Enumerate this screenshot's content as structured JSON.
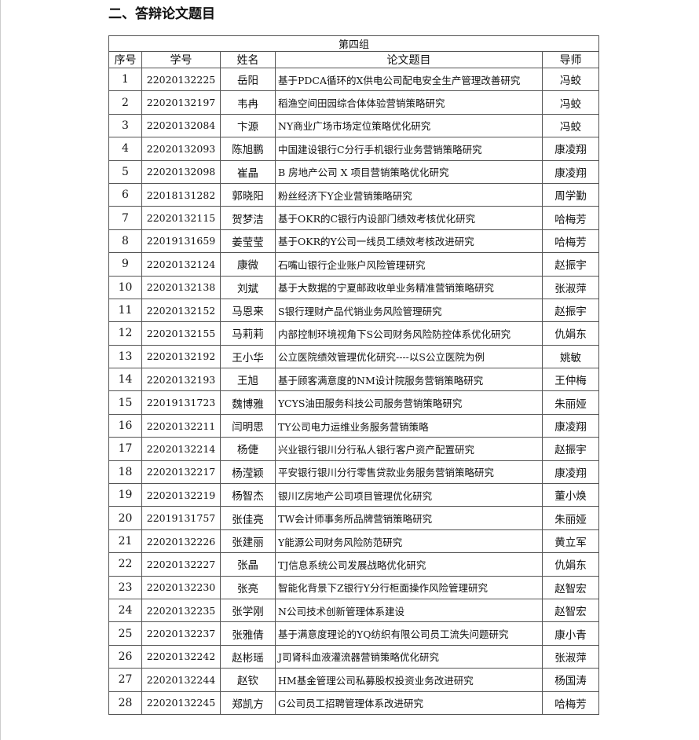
{
  "heading": "二、答辩论文题目",
  "table": {
    "group": "第四组",
    "columns": [
      "序号",
      "学号",
      "姓名",
      "论文题目",
      "导师"
    ],
    "rows": [
      [
        "1",
        "22020132225",
        "岳阳",
        "基于PDCA循环的X供电公司配电安全生产管理改善研究",
        "冯蛟"
      ],
      [
        "2",
        "22020132197",
        "韦冉",
        "稻渔空间田园综合体体验营销策略研究",
        "冯蛟"
      ],
      [
        "3",
        "22020132084",
        "卞源",
        "NY商业广场市场定位策略优化研究",
        "冯蛟"
      ],
      [
        "4",
        "22020132093",
        "陈旭鹏",
        "中国建设银行C分行手机银行业务营销策略研究",
        "康凌翔"
      ],
      [
        "5",
        "22020132098",
        "崔晶",
        "B 房地产公司 X 项目营销策略优化研究",
        "康凌翔"
      ],
      [
        "6",
        "22018131282",
        "郭晓阳",
        "粉丝经济下Y企业营销策略研究",
        "周学勤"
      ],
      [
        "7",
        "22020132115",
        "贺梦洁",
        "基于OKR的C银行内设部门绩效考核优化研究",
        "哈梅芳"
      ],
      [
        "8",
        "22019131659",
        "姜莹莹",
        "基于OKR的Y公司一线员工绩效考核改进研究",
        "哈梅芳"
      ],
      [
        "9",
        "22020132124",
        "康微",
        "石嘴山银行企业账户风险管理研究",
        "赵振宇"
      ],
      [
        "10",
        "22020132138",
        "刘斌",
        "基于大数据的宁夏邮政收单业务精准营销策略研究",
        "张淑萍"
      ],
      [
        "11",
        "22020132152",
        "马恩来",
        "S银行理财产品代销业务风险管理研究",
        "赵振宇"
      ],
      [
        "12",
        "22020132155",
        "马莉莉",
        "内部控制环境视角下S公司财务风险防控体系优化研究",
        "仇娟东"
      ],
      [
        "13",
        "22020132192",
        "王小华",
        "公立医院绩效管理优化研究----以S公立医院为例",
        "姚敏"
      ],
      [
        "14",
        "22020132193",
        "王旭",
        "基于顾客满意度的NM设计院服务营销策略研究",
        "王仲梅"
      ],
      [
        "15",
        "22019131723",
        "魏博雅",
        "YCYS油田服务科技公司服务营销策略研究",
        "朱丽娅"
      ],
      [
        "16",
        "22020132211",
        "闫明思",
        "TY公司电力运维业务服务营销策略",
        "康凌翔"
      ],
      [
        "17",
        "22020132214",
        "杨倢",
        "兴业银行银川分行私人银行客户资产配置研究",
        "赵振宇"
      ],
      [
        "18",
        "22020132217",
        "杨滢颖",
        "平安银行银川分行零售贷款业务服务营销策略研究",
        "康凌翔"
      ],
      [
        "19",
        "22020132219",
        "杨智杰",
        "银川Z房地产公司项目管理优化研究",
        "董小焕"
      ],
      [
        "20",
        "22019131757",
        "张佳亮",
        "TW会计师事务所品牌营销策略研究",
        "朱丽娅"
      ],
      [
        "21",
        "22020132226",
        "张建丽",
        "Y能源公司财务风险防范研究",
        "黄立军"
      ],
      [
        "22",
        "22020132227",
        "张晶",
        "TJ信息系统公司发展战略优化研究",
        "仇娟东"
      ],
      [
        "23",
        "22020132230",
        "张亮",
        "智能化背景下Z银行Y分行柜面操作风险管理研究",
        "赵智宏"
      ],
      [
        "24",
        "22020132235",
        "张学刚",
        "N公司技术创新管理体系建设",
        "赵智宏"
      ],
      [
        "25",
        "22020132237",
        "张雅倩",
        "基于满意度理论的YQ纺织有限公司员工流失问题研究",
        "康小青"
      ],
      [
        "26",
        "22020132242",
        "赵彬瑶",
        "J司肾科血液灌流器营销策略优化研究",
        "张淑萍"
      ],
      [
        "27",
        "22020132244",
        "赵钦",
        "HM基金管理公司私募股权投资业务改进研究",
        "杨国涛"
      ],
      [
        "28",
        "22020132245",
        "郑凯方",
        "G公司员工招聘管理体系改进研究",
        "哈梅芳"
      ]
    ]
  }
}
